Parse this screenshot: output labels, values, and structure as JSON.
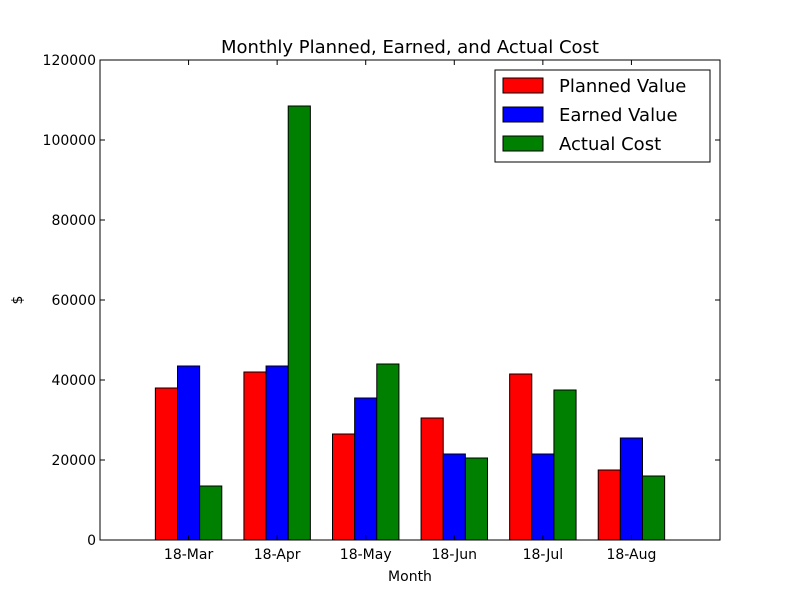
{
  "chart_data": {
    "type": "bar",
    "title": "Monthly Planned, Earned, and Actual Cost",
    "xlabel": "Month",
    "ylabel": "$",
    "categories": [
      "18-Mar",
      "18-Apr",
      "18-May",
      "18-Jun",
      "18-Jul",
      "18-Aug"
    ],
    "ylim": [
      0,
      120000
    ],
    "yticks": [
      0,
      20000,
      40000,
      60000,
      80000,
      100000,
      120000
    ],
    "grid": false,
    "legend_position": "top-right",
    "series": [
      {
        "name": "Planned Value",
        "color": "#ff0000",
        "values": [
          38000,
          42000,
          26500,
          30500,
          41500,
          17500
        ]
      },
      {
        "name": "Earned Value",
        "color": "#0000ff",
        "values": [
          43500,
          43500,
          35500,
          21500,
          21500,
          25500
        ]
      },
      {
        "name": "Actual Cost",
        "color": "#008000",
        "values": [
          13500,
          108500,
          44000,
          20500,
          37500,
          16000
        ]
      }
    ]
  }
}
